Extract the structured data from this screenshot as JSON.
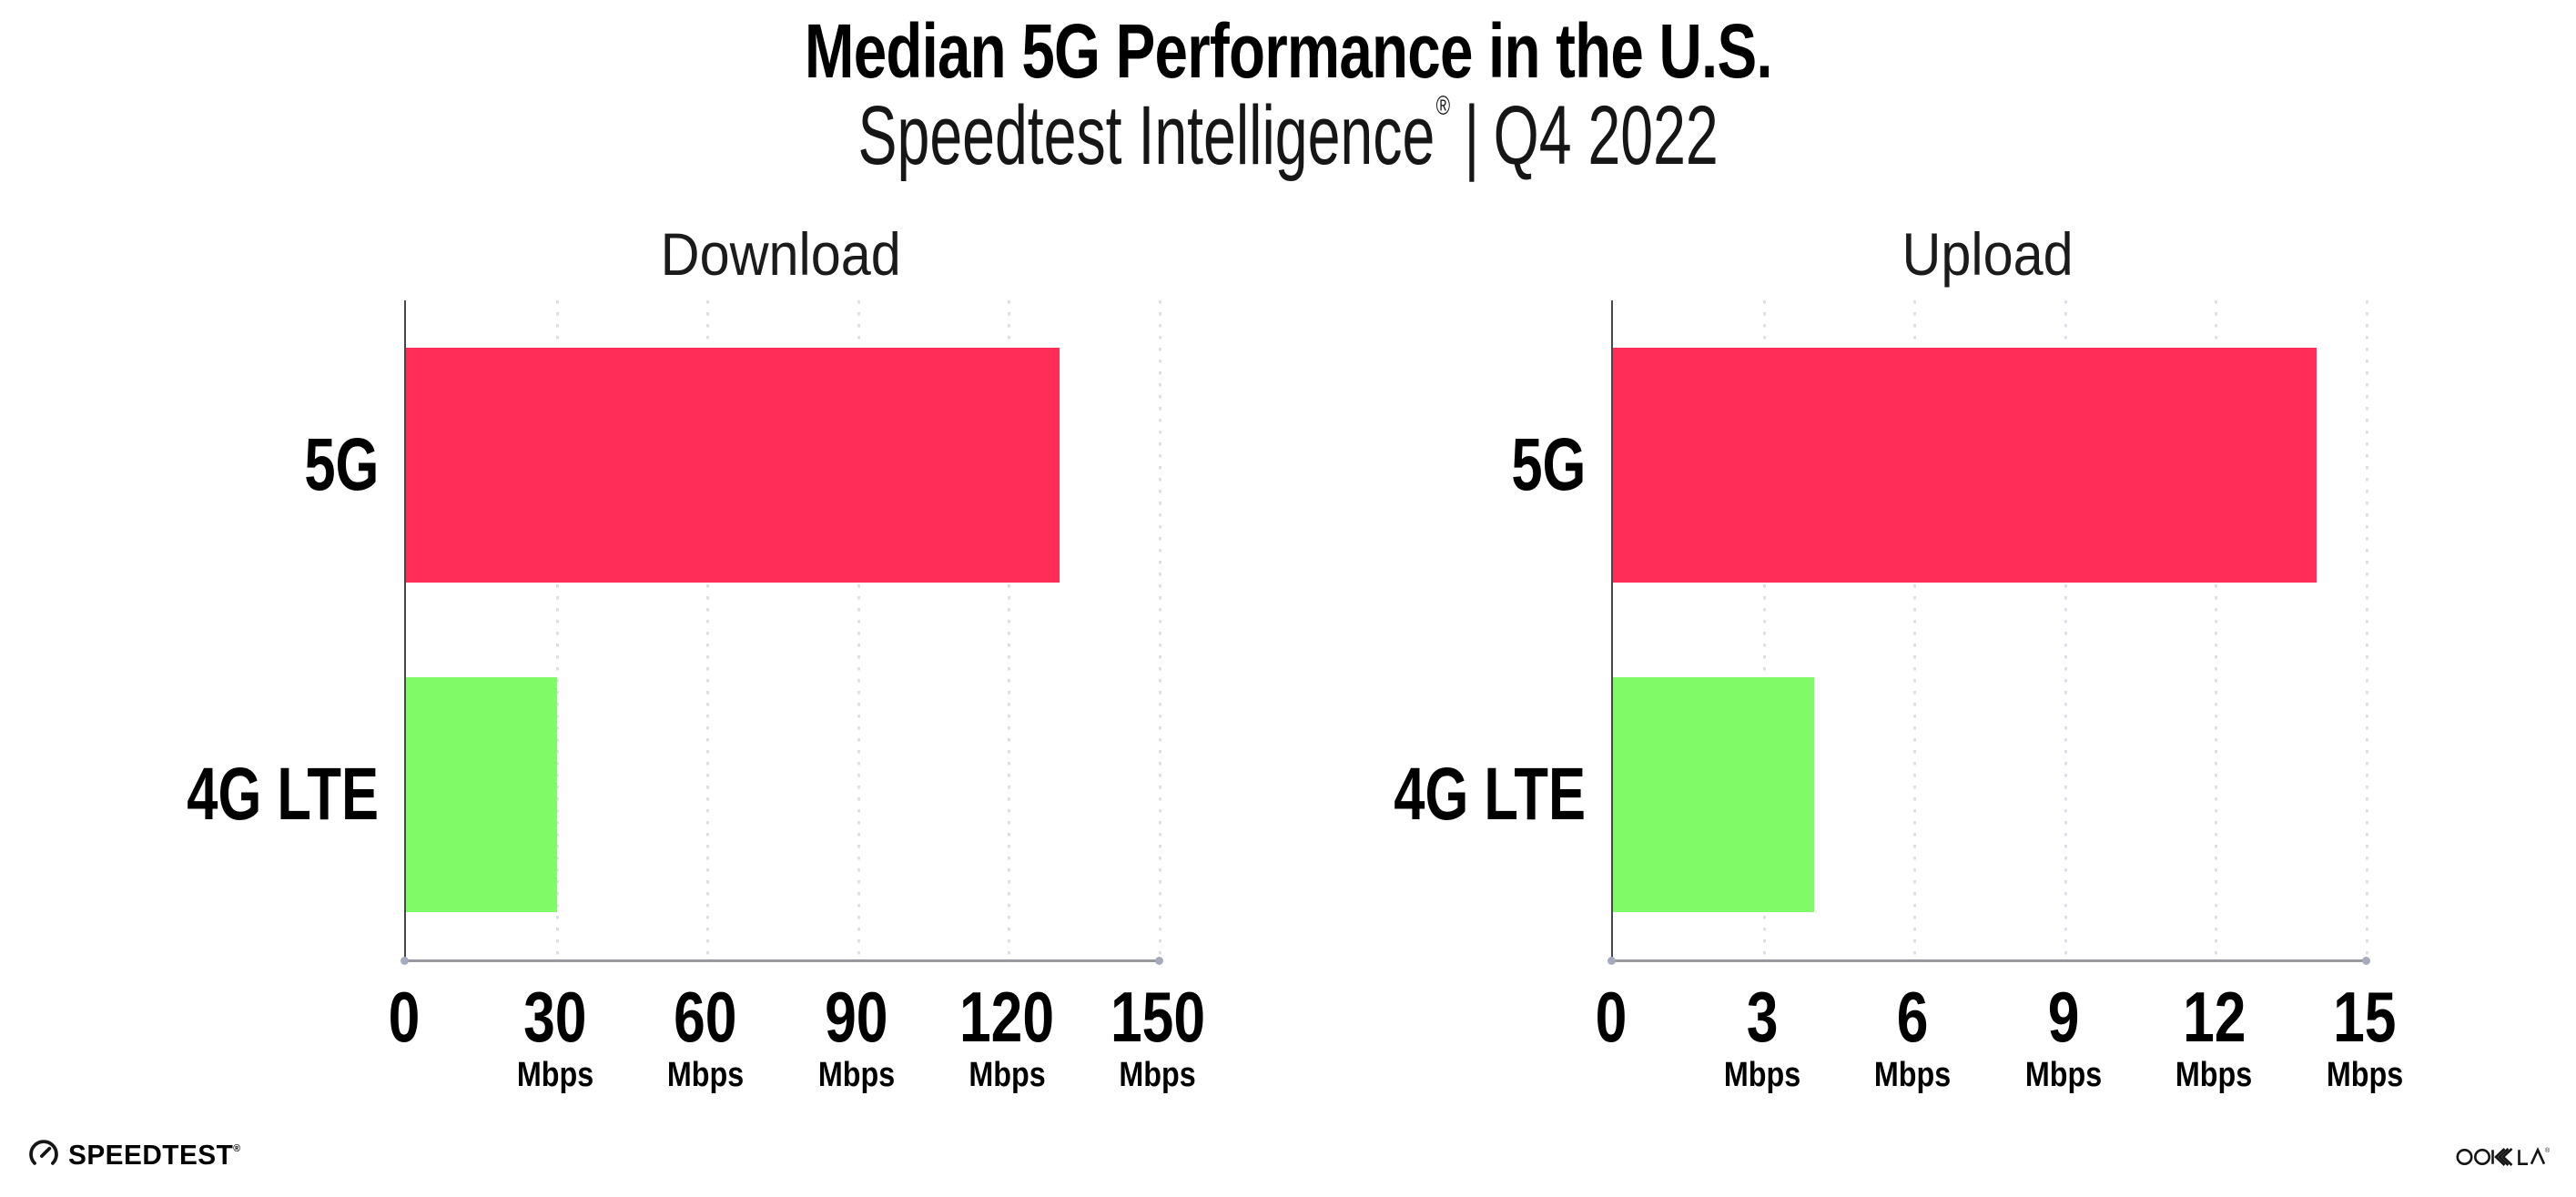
{
  "header": {
    "title": "Median 5G Performance in the U.S.",
    "subtitle_brand": "Speedtest Intelligence",
    "subtitle_registered": "®",
    "subtitle_separator": "|",
    "subtitle_period": "Q4 2022"
  },
  "chart_data": [
    {
      "type": "bar",
      "orientation": "horizontal",
      "title": "Download",
      "categories": [
        "5G",
        "4G LTE"
      ],
      "values": [
        130,
        30
      ],
      "unit": "Mbps",
      "bar_colors": [
        "#FF2D57",
        "#80FA66"
      ],
      "xticks": [
        0,
        30,
        60,
        90,
        120,
        150
      ],
      "xtick_unit": "Mbps",
      "xlim": [
        0,
        150
      ],
      "grid": "dotted-vertical",
      "legend": "none"
    },
    {
      "type": "bar",
      "orientation": "horizontal",
      "title": "Upload",
      "categories": [
        "5G",
        "4G LTE"
      ],
      "values": [
        14,
        4
      ],
      "unit": "Mbps",
      "bar_colors": [
        "#FF2D57",
        "#80FA66"
      ],
      "xticks": [
        0,
        3,
        6,
        9,
        12,
        15
      ],
      "xtick_unit": "Mbps",
      "xlim": [
        0,
        15
      ],
      "grid": "dotted-vertical",
      "legend": "none"
    }
  ],
  "footer": {
    "speedtest_label": "SPEEDTEST",
    "speedtest_trademark": "®",
    "ookla_label": "OOKLA",
    "ookla_registered": "®"
  },
  "colors": {
    "bar_5g": "#FF2D57",
    "bar_4g_lte": "#80FA66",
    "gridline": "#DEDEE9",
    "axis_line": "#98989F",
    "axis_left": "#46464D",
    "text": "#000000",
    "background": "#FFFFFF"
  }
}
